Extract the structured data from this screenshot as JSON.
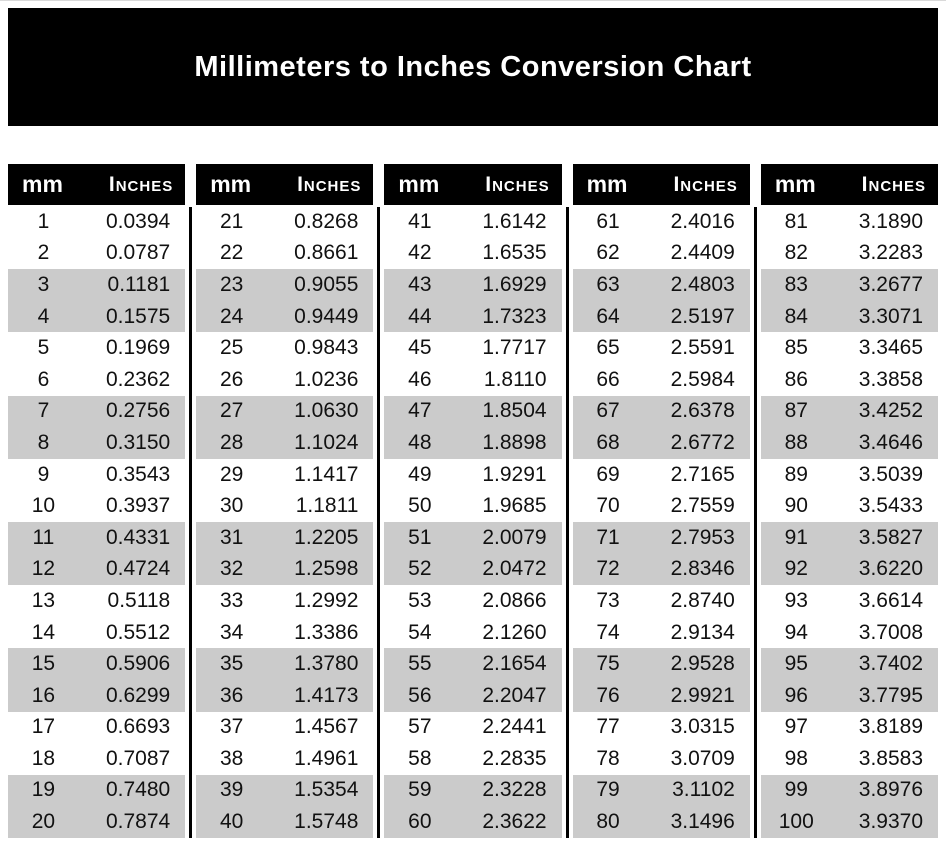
{
  "title": "Millimeters to Inches Conversion Chart",
  "colors": {
    "banner_bg": "#000000",
    "banner_text": "#ffffff",
    "header_bg": "#000000",
    "header_text": "#ffffff",
    "stripe": "#cbcbcb",
    "text": "#111111",
    "page_bg": "#ffffff"
  },
  "chart_data": {
    "type": "table",
    "title": "Millimeters to Inches Conversion Chart",
    "columns": [
      "mm",
      "Inches"
    ],
    "groups": [
      [
        [
          "1",
          "0.0394"
        ],
        [
          "2",
          "0.0787"
        ],
        [
          "3",
          "0.1181"
        ],
        [
          "4",
          "0.1575"
        ],
        [
          "5",
          "0.1969"
        ],
        [
          "6",
          "0.2362"
        ],
        [
          "7",
          "0.2756"
        ],
        [
          "8",
          "0.3150"
        ],
        [
          "9",
          "0.3543"
        ],
        [
          "10",
          "0.3937"
        ],
        [
          "11",
          "0.4331"
        ],
        [
          "12",
          "0.4724"
        ],
        [
          "13",
          "0.5118"
        ],
        [
          "14",
          "0.5512"
        ],
        [
          "15",
          "0.5906"
        ],
        [
          "16",
          "0.6299"
        ],
        [
          "17",
          "0.6693"
        ],
        [
          "18",
          "0.7087"
        ],
        [
          "19",
          "0.7480"
        ],
        [
          "20",
          "0.7874"
        ]
      ],
      [
        [
          "21",
          "0.8268"
        ],
        [
          "22",
          "0.8661"
        ],
        [
          "23",
          "0.9055"
        ],
        [
          "24",
          "0.9449"
        ],
        [
          "25",
          "0.9843"
        ],
        [
          "26",
          "1.0236"
        ],
        [
          "27",
          "1.0630"
        ],
        [
          "28",
          "1.1024"
        ],
        [
          "29",
          "1.1417"
        ],
        [
          "30",
          "1.1811"
        ],
        [
          "31",
          "1.2205"
        ],
        [
          "32",
          "1.2598"
        ],
        [
          "33",
          "1.2992"
        ],
        [
          "34",
          "1.3386"
        ],
        [
          "35",
          "1.3780"
        ],
        [
          "36",
          "1.4173"
        ],
        [
          "37",
          "1.4567"
        ],
        [
          "38",
          "1.4961"
        ],
        [
          "39",
          "1.5354"
        ],
        [
          "40",
          "1.5748"
        ]
      ],
      [
        [
          "41",
          "1.6142"
        ],
        [
          "42",
          "1.6535"
        ],
        [
          "43",
          "1.6929"
        ],
        [
          "44",
          "1.7323"
        ],
        [
          "45",
          "1.7717"
        ],
        [
          "46",
          "1.8110"
        ],
        [
          "47",
          "1.8504"
        ],
        [
          "48",
          "1.8898"
        ],
        [
          "49",
          "1.9291"
        ],
        [
          "50",
          "1.9685"
        ],
        [
          "51",
          "2.0079"
        ],
        [
          "52",
          "2.0472"
        ],
        [
          "53",
          "2.0866"
        ],
        [
          "54",
          "2.1260"
        ],
        [
          "55",
          "2.1654"
        ],
        [
          "56",
          "2.2047"
        ],
        [
          "57",
          "2.2441"
        ],
        [
          "58",
          "2.2835"
        ],
        [
          "59",
          "2.3228"
        ],
        [
          "60",
          "2.3622"
        ]
      ],
      [
        [
          "61",
          "2.4016"
        ],
        [
          "62",
          "2.4409"
        ],
        [
          "63",
          "2.4803"
        ],
        [
          "64",
          "2.5197"
        ],
        [
          "65",
          "2.5591"
        ],
        [
          "66",
          "2.5984"
        ],
        [
          "67",
          "2.6378"
        ],
        [
          "68",
          "2.6772"
        ],
        [
          "69",
          "2.7165"
        ],
        [
          "70",
          "2.7559"
        ],
        [
          "71",
          "2.7953"
        ],
        [
          "72",
          "2.8346"
        ],
        [
          "73",
          "2.8740"
        ],
        [
          "74",
          "2.9134"
        ],
        [
          "75",
          "2.9528"
        ],
        [
          "76",
          "2.9921"
        ],
        [
          "77",
          "3.0315"
        ],
        [
          "78",
          "3.0709"
        ],
        [
          "79",
          "3.1102"
        ],
        [
          "80",
          "3.1496"
        ]
      ],
      [
        [
          "81",
          "3.1890"
        ],
        [
          "82",
          "3.2283"
        ],
        [
          "83",
          "3.2677"
        ],
        [
          "84",
          "3.3071"
        ],
        [
          "85",
          "3.3465"
        ],
        [
          "86",
          "3.3858"
        ],
        [
          "87",
          "3.4252"
        ],
        [
          "88",
          "3.4646"
        ],
        [
          "89",
          "3.5039"
        ],
        [
          "90",
          "3.5433"
        ],
        [
          "91",
          "3.5827"
        ],
        [
          "92",
          "3.6220"
        ],
        [
          "93",
          "3.6614"
        ],
        [
          "94",
          "3.7008"
        ],
        [
          "95",
          "3.7402"
        ],
        [
          "96",
          "3.7795"
        ],
        [
          "97",
          "3.8189"
        ],
        [
          "98",
          "3.8583"
        ],
        [
          "99",
          "3.8976"
        ],
        [
          "100",
          "3.9370"
        ]
      ]
    ]
  }
}
